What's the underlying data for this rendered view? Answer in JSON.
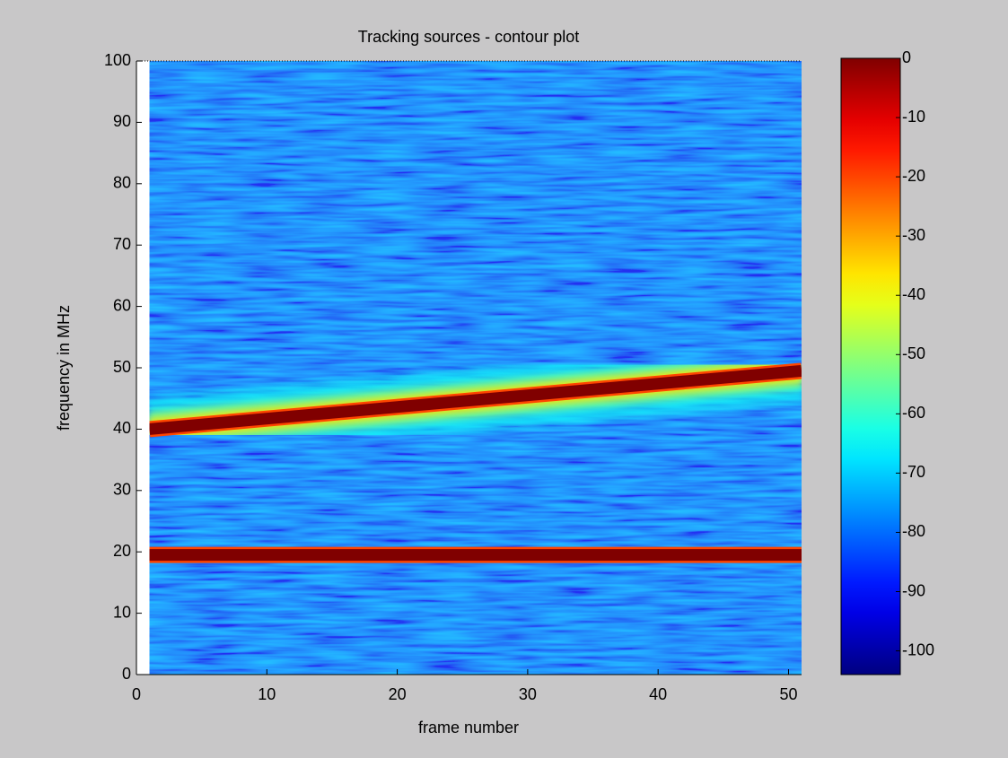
{
  "chart_data": {
    "type": "contour",
    "title": "Tracking sources - contour plot",
    "x_label": "frame number",
    "y_label": "frequency in MHz",
    "xlim": [
      0,
      51
    ],
    "xticks": [
      0,
      10,
      20,
      30,
      40,
      50
    ],
    "ylim": [
      0,
      100
    ],
    "yticks": [
      0,
      10,
      20,
      30,
      40,
      50,
      60,
      70,
      80,
      90,
      100
    ],
    "sources": [
      {
        "x": [
          1,
          51
        ],
        "y": [
          40,
          49.5
        ]
      },
      {
        "x": [
          1,
          51
        ],
        "y": [
          19.5,
          19.5
        ]
      }
    ],
    "background_level": -80,
    "peak_level": 0,
    "colorbar": {
      "lim": [
        -104,
        0
      ],
      "ticks": [
        0,
        -10,
        -20,
        -30,
        -40,
        -50,
        -60,
        -70,
        -80,
        -90,
        -100
      ],
      "colormap": "jet"
    }
  }
}
